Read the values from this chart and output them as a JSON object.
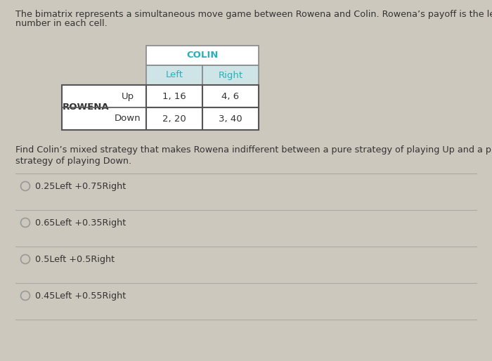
{
  "bg_color": "#cdc8be",
  "title_text1": "The bimatrix represents a simultaneous move game between Rowena and Colin. Rowena’s payoff is the left",
  "title_text2": "number in each cell.",
  "colin_header": "COLIN",
  "colin_header_color": "#2ab0ba",
  "col_header_bg": "#cfe4e6",
  "col_headers": [
    "Left",
    "Right"
  ],
  "col_header_color": "#2ab0ba",
  "row_label": "ROWENA",
  "row_strategies": [
    "Up",
    "Down"
  ],
  "cell_data": [
    [
      "1, 16",
      "4, 6"
    ],
    [
      "2, 20",
      "3, 40"
    ]
  ],
  "question_text1": "Find Colin’s mixed strategy that makes Rowena indifferent between a pure strategy of playing Up and a pure",
  "question_text2": "strategy of playing Down.",
  "options": [
    "0.25Left +0.75Right",
    "0.65Left +0.35Right",
    "0.5Left +0.5Right",
    "0.45Left +0.55Right"
  ],
  "cell_bg": "white",
  "table_border_color": "#555555",
  "colin_border_color": "#888888",
  "divider_color": "#aaaaaa",
  "text_color": "#333333",
  "radio_color": "#999999"
}
